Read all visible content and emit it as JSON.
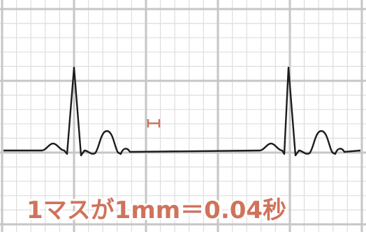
{
  "caption": "1マスが1mm＝0.04秒"
}
